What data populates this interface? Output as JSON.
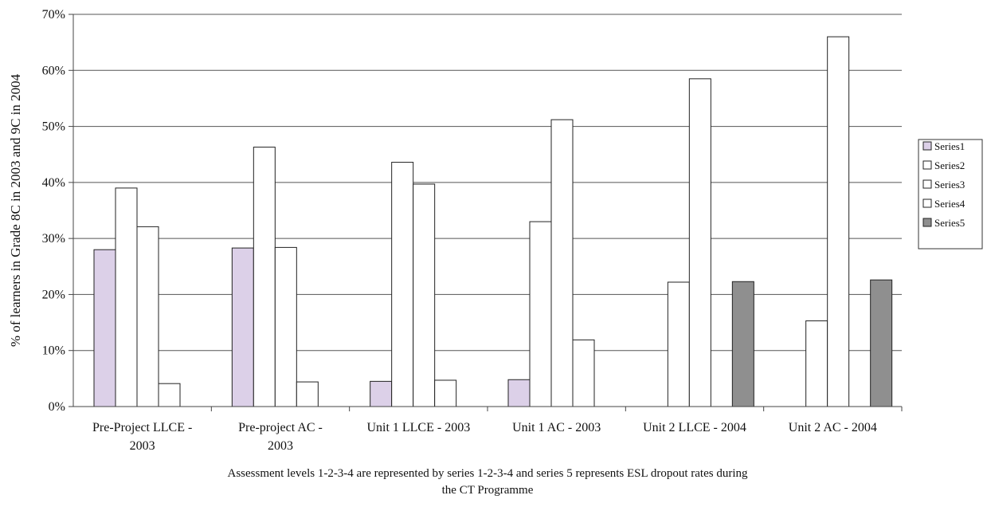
{
  "chart_data": {
    "type": "bar",
    "title": "",
    "ylabel": "% of learners in Grade 8C in 2003 and 9C in 2004",
    "xlabel_lines": [
      "Assessment levels 1-2-3-4 are represented by series 1-2-3-4 and series 5 represents ESL dropout rates during",
      "the CT Programme"
    ],
    "ylim": [
      0,
      70
    ],
    "ytick_values": [
      0,
      10,
      20,
      30,
      40,
      50,
      60,
      70
    ],
    "ytick_labels": [
      "0%",
      "10%",
      "20%",
      "30%",
      "40%",
      "50%",
      "60%",
      "70%"
    ],
    "grid": true,
    "legend_position": "right",
    "categories": [
      [
        "Pre-Project LLCE -",
        "2003"
      ],
      [
        "Pre-project AC -",
        "2003"
      ],
      [
        "Unit 1 LLCE - 2003"
      ],
      [
        "Unit 1 AC - 2003"
      ],
      [
        "Unit 2 LLCE - 2004"
      ],
      [
        "Unit 2 AC - 2004"
      ]
    ],
    "series": [
      {
        "name": "Series1",
        "color": "#dcd0e8",
        "values": [
          28,
          28.3,
          4.5,
          4.8,
          0,
          0
        ]
      },
      {
        "name": "Series2",
        "color": "#ffffff",
        "values": [
          39,
          46.3,
          43.6,
          33,
          22.2,
          15.3
        ]
      },
      {
        "name": "Series3",
        "color": "#ffffff",
        "values": [
          32.1,
          28.4,
          39.7,
          51.2,
          58.5,
          66
        ]
      },
      {
        "name": "Series4",
        "color": "#ffffff",
        "values": [
          4.1,
          4.4,
          4.7,
          11.9,
          0,
          0
        ]
      },
      {
        "name": "Series5",
        "color": "#8f8f8f",
        "values": [
          0,
          0,
          0,
          0,
          22.3,
          22.6
        ]
      }
    ]
  }
}
